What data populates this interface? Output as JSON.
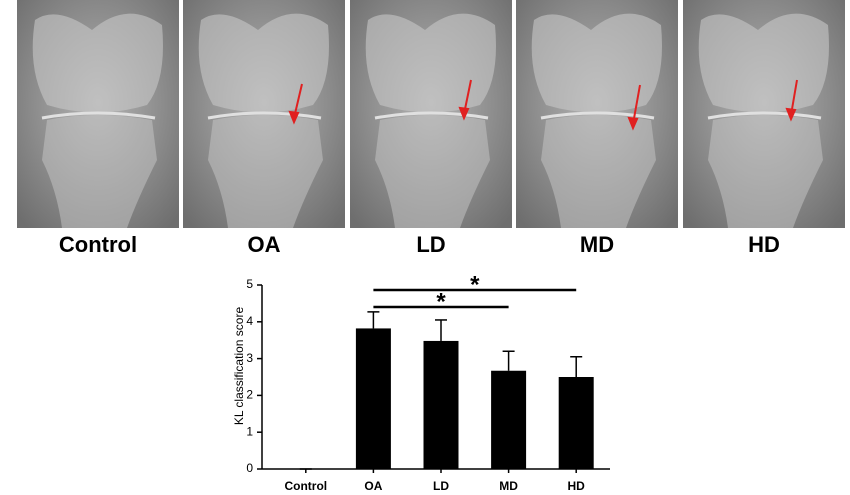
{
  "panel_labels": [
    "Control",
    "OA",
    "LD",
    "MD",
    "HD"
  ],
  "chart_data": {
    "type": "bar",
    "ylabel": "KL classification score",
    "categories": [
      "Control",
      "OA",
      "LD",
      "MD",
      "HD"
    ],
    "values": [
      0,
      3.82,
      3.48,
      2.67,
      2.5
    ],
    "errors": [
      0,
      0.45,
      0.57,
      0.53,
      0.55
    ],
    "color": "#000000",
    "ylim": [
      0,
      5
    ],
    "yticks": [
      0,
      1,
      2,
      3,
      4,
      5
    ],
    "significance": [
      {
        "from": "OA",
        "to": "HD",
        "label": "*"
      },
      {
        "from": "OA",
        "to": "MD",
        "label": "*"
      }
    ]
  }
}
